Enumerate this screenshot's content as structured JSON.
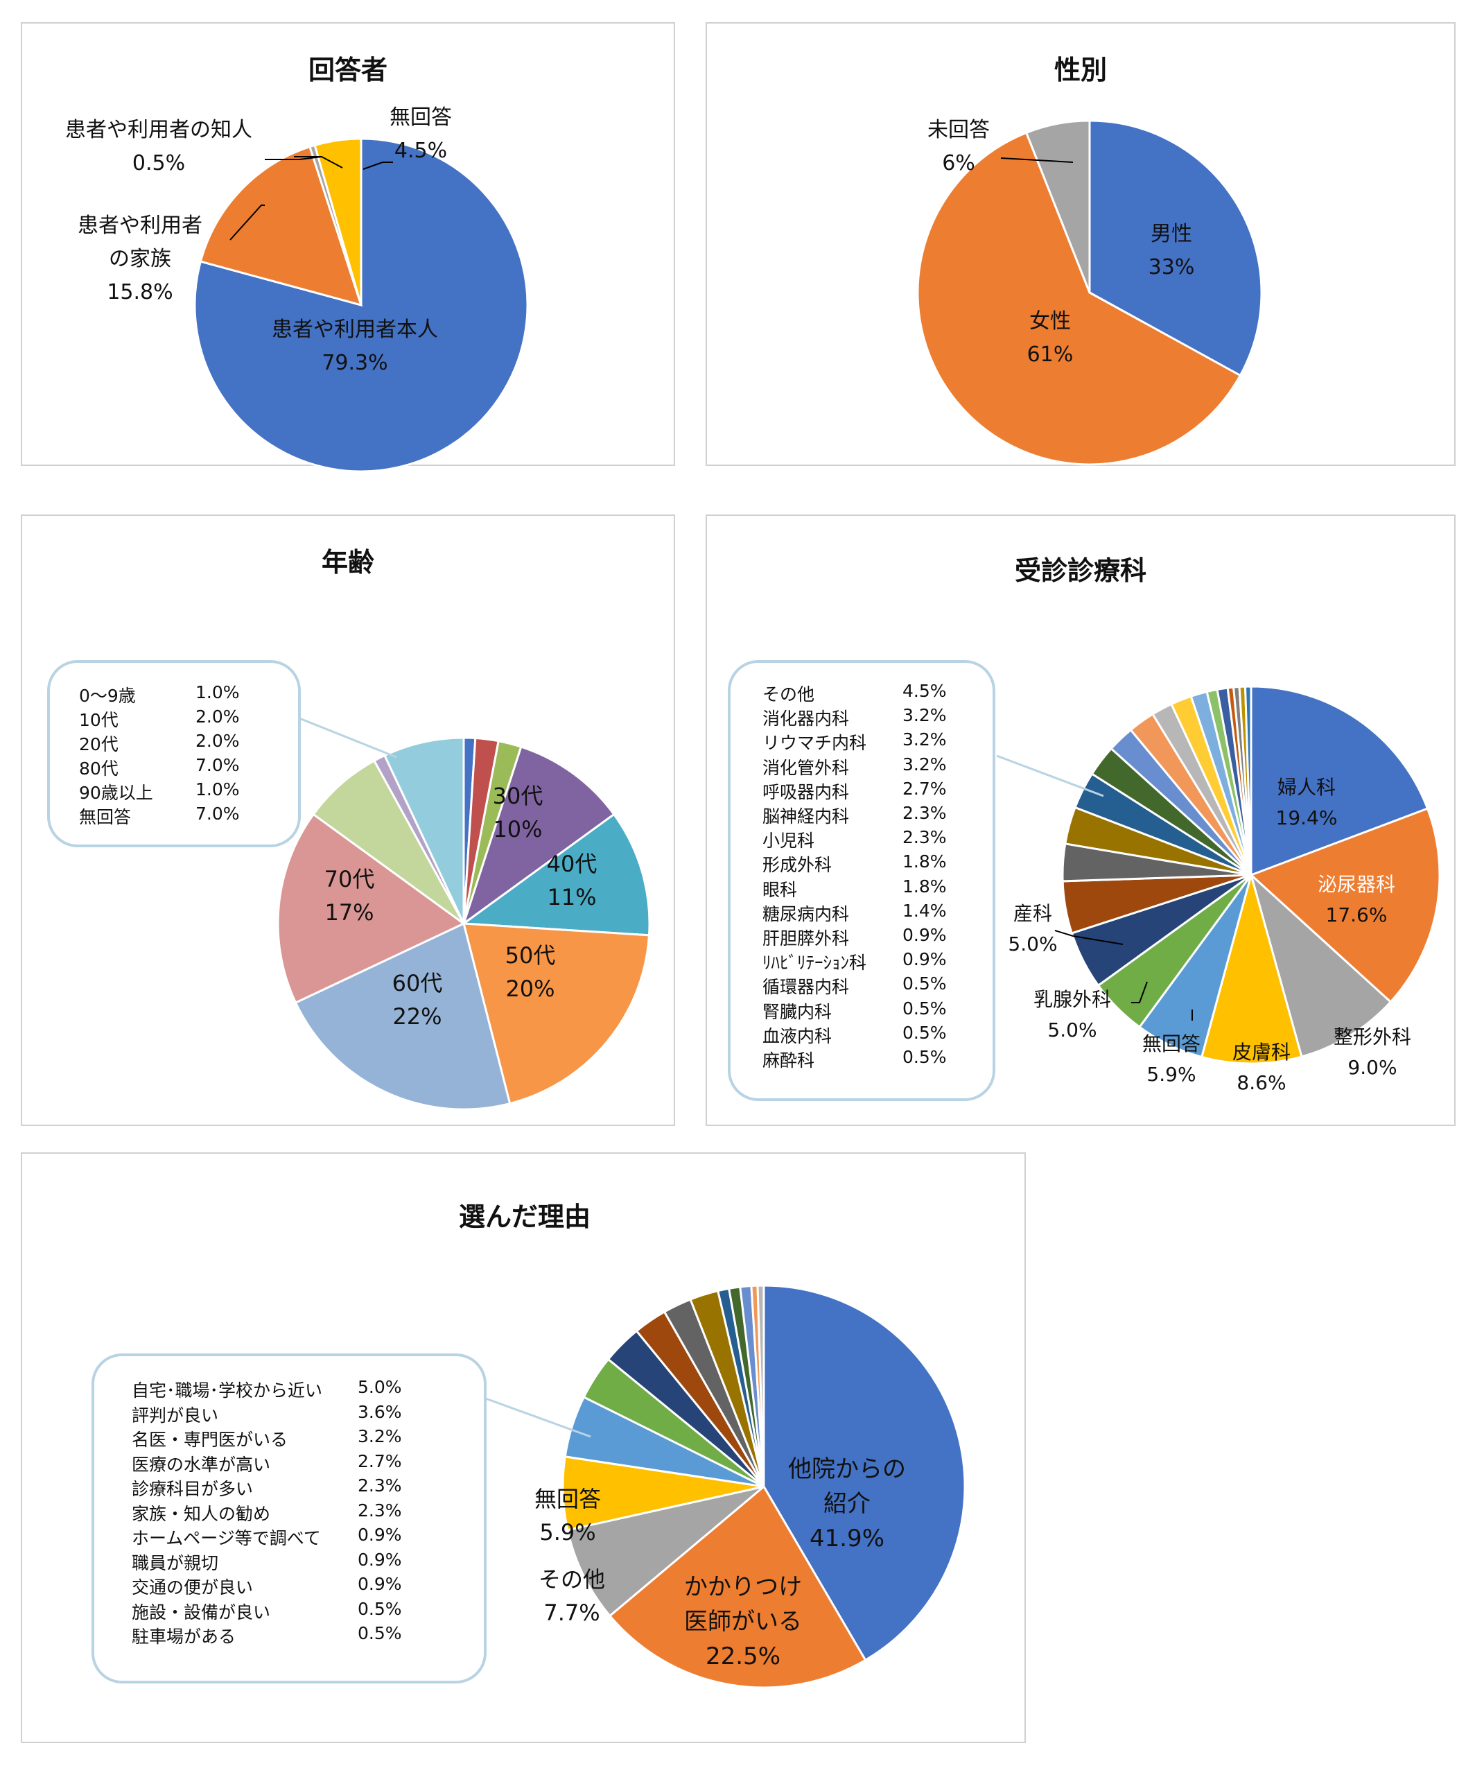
{
  "colors": {
    "blue": "#4472C4",
    "orange": "#ED7D31",
    "gray": "#A5A5A5",
    "gold": "#FFC000",
    "lightblue": "#5B9BD5",
    "green": "#70AD47",
    "navy": "#264478",
    "rust": "#9E480E",
    "darkgray": "#636363",
    "olive": "#997300",
    "steel": "#255E91",
    "forest": "#43682B",
    "periwinkle": "#698ED0",
    "salmon": "#F1975A",
    "silver": "#B7B7B7",
    "yellow": "#FFCD33",
    "sky": "#7CAFDD",
    "lime": "#8CC168"
  },
  "chart_data": [
    {
      "id": "respondent",
      "type": "pie",
      "title": "回答者",
      "slices": [
        {
          "label": "患者や利用者本人",
          "value": 79.3,
          "display": "79.3%",
          "color": "#4472C4"
        },
        {
          "label": "患者や利用者の家族",
          "label_lines": [
            "患者や利用者",
            "の家族"
          ],
          "value": 15.8,
          "display": "15.8%",
          "color": "#ED7D31"
        },
        {
          "label": "患者や利用者の知人",
          "value": 0.5,
          "display": "0.5%",
          "color": "#A5A5A5"
        },
        {
          "label": "無回答",
          "value": 4.5,
          "display": "4.5%",
          "color": "#FFC000"
        }
      ]
    },
    {
      "id": "gender",
      "type": "pie",
      "title": "性別",
      "slices": [
        {
          "label": "男性",
          "value": 33,
          "display": "33%",
          "color": "#4472C4"
        },
        {
          "label": "女性",
          "value": 61,
          "display": "61%",
          "color": "#ED7D31"
        },
        {
          "label": "未回答",
          "value": 6,
          "display": "6%",
          "color": "#A5A5A5"
        }
      ]
    },
    {
      "id": "age",
      "type": "pie",
      "title": "年齢",
      "slices": [
        {
          "label": "0～9歳",
          "value": 1.0,
          "display": "1.0%",
          "color": "#4472C4"
        },
        {
          "label": "10代",
          "value": 2.0,
          "display": "2.0%",
          "color": "#C0504D"
        },
        {
          "label": "20代",
          "value": 2.0,
          "display": "2.0%",
          "color": "#9BBB59"
        },
        {
          "label": "30代",
          "value": 10,
          "display": "10%",
          "color": "#8064A2"
        },
        {
          "label": "40代",
          "value": 11,
          "display": "11%",
          "color": "#4BACC6"
        },
        {
          "label": "50代",
          "value": 20,
          "display": "20%",
          "color": "#F79646"
        },
        {
          "label": "60代",
          "value": 22,
          "display": "22%",
          "color": "#95B3D7"
        },
        {
          "label": "70代",
          "value": 17,
          "display": "17%",
          "color": "#D99694"
        },
        {
          "label": "80代",
          "value": 7.0,
          "display": "7.0%",
          "color": "#C3D69B"
        },
        {
          "label": "90歳以上",
          "value": 1.0,
          "display": "1.0%",
          "color": "#B3A2C7"
        },
        {
          "label": "無回答",
          "value": 7.0,
          "display": "7.0%",
          "color": "#93CDDD"
        }
      ],
      "callout": [
        "0～9歳",
        "10代",
        "20代",
        "80代",
        "90歳以上",
        "無回答"
      ]
    },
    {
      "id": "department",
      "type": "pie",
      "title": "受診診療科",
      "slices": [
        {
          "label": "婦人科",
          "value": 19.4,
          "display": "19.4%",
          "color": "#4472C4"
        },
        {
          "label": "泌尿器科",
          "value": 17.6,
          "display": "17.6%",
          "color": "#ED7D31"
        },
        {
          "label": "整形外科",
          "value": 9.0,
          "display": "9.0%",
          "color": "#A5A5A5"
        },
        {
          "label": "皮膚科",
          "value": 8.6,
          "display": "8.6%",
          "color": "#FFC000"
        },
        {
          "label": "無回答",
          "value": 5.9,
          "display": "5.9%",
          "color": "#5B9BD5"
        },
        {
          "label": "乳腺外科",
          "value": 5.0,
          "display": "5.0%",
          "color": "#70AD47"
        },
        {
          "label": "産科",
          "value": 5.0,
          "display": "5.0%",
          "color": "#264478"
        },
        {
          "label": "その他",
          "value": 4.5,
          "display": "4.5%",
          "color": "#9E480E"
        },
        {
          "label": "消化器内科",
          "value": 3.2,
          "display": "3.2%",
          "color": "#636363"
        },
        {
          "label": "リウマチ内科",
          "value": 3.2,
          "display": "3.2%",
          "color": "#997300"
        },
        {
          "label": "消化管外科",
          "value": 3.2,
          "display": "3.2%",
          "color": "#255E91"
        },
        {
          "label": "呼吸器内科",
          "value": 2.7,
          "display": "2.7%",
          "color": "#43682B"
        },
        {
          "label": "脳神経内科",
          "value": 2.3,
          "display": "2.3%",
          "color": "#698ED0"
        },
        {
          "label": "小児科",
          "value": 2.3,
          "display": "2.3%",
          "color": "#F1975A"
        },
        {
          "label": "形成外科",
          "value": 1.8,
          "display": "1.8%",
          "color": "#B7B7B7"
        },
        {
          "label": "眼科",
          "value": 1.8,
          "display": "1.8%",
          "color": "#FFCD33"
        },
        {
          "label": "糖尿病内科",
          "value": 1.4,
          "display": "1.4%",
          "color": "#7CAFDD"
        },
        {
          "label": "肝胆膵外科",
          "value": 0.9,
          "display": "0.9%",
          "color": "#8CC168"
        },
        {
          "label": "ﾘﾊﾋﾞﾘﾃｰｼｮﾝ科",
          "value": 0.9,
          "display": "0.9%",
          "color": "#3A5FA0"
        },
        {
          "label": "循環器内科",
          "value": 0.5,
          "display": "0.5%",
          "color": "#C55A11"
        },
        {
          "label": "腎臓内科",
          "value": 0.5,
          "display": "0.5%",
          "color": "#7F7F7F"
        },
        {
          "label": "血液内科",
          "value": 0.5,
          "display": "0.5%",
          "color": "#BF9000"
        },
        {
          "label": "麻酔科",
          "value": 0.5,
          "display": "0.5%",
          "color": "#2E75B6"
        }
      ],
      "callout": [
        "その他",
        "消化器内科",
        "リウマチ内科",
        "消化管外科",
        "呼吸器内科",
        "脳神経内科",
        "小児科",
        "形成外科",
        "眼科",
        "糖尿病内科",
        "肝胆膵外科",
        "ﾘﾊﾋﾞﾘﾃｰｼｮﾝ科",
        "循環器内科",
        "腎臓内科",
        "血液内科",
        "麻酔科"
      ]
    },
    {
      "id": "reason",
      "type": "pie",
      "title": "選んだ理由",
      "slices": [
        {
          "label": "他院からの紹介",
          "label_lines": [
            "他院からの",
            "紹介"
          ],
          "value": 41.9,
          "display": "41.9%",
          "color": "#4472C4"
        },
        {
          "label": "かかりつけ医師がいる",
          "label_lines": [
            "かかりつけ",
            "医師がいる"
          ],
          "value": 22.5,
          "display": "22.5%",
          "color": "#ED7D31"
        },
        {
          "label": "その他",
          "value": 7.7,
          "display": "7.7%",
          "color": "#A5A5A5"
        },
        {
          "label": "無回答",
          "value": 5.9,
          "display": "5.9%",
          "color": "#FFC000"
        },
        {
          "label": "自宅･職場･学校から近い",
          "value": 5.0,
          "display": "5.0%",
          "color": "#5B9BD5"
        },
        {
          "label": "評判が良い",
          "value": 3.6,
          "display": "3.6%",
          "color": "#70AD47"
        },
        {
          "label": "名医・専門医がいる",
          "value": 3.2,
          "display": "3.2%",
          "color": "#264478"
        },
        {
          "label": "医療の水準が高い",
          "value": 2.7,
          "display": "2.7%",
          "color": "#9E480E"
        },
        {
          "label": "診療科目が多い",
          "value": 2.3,
          "display": "2.3%",
          "color": "#636363"
        },
        {
          "label": "家族・知人の勧め",
          "value": 2.3,
          "display": "2.3%",
          "color": "#997300"
        },
        {
          "label": "ホームページ等で調べて",
          "value": 0.9,
          "display": "0.9%",
          "color": "#255E91"
        },
        {
          "label": "職員が親切",
          "value": 0.9,
          "display": "0.9%",
          "color": "#43682B"
        },
        {
          "label": "交通の便が良い",
          "value": 0.9,
          "display": "0.9%",
          "color": "#698ED0"
        },
        {
          "label": "施設・設備が良い",
          "value": 0.5,
          "display": "0.5%",
          "color": "#F1975A"
        },
        {
          "label": "駐車場がある",
          "value": 0.5,
          "display": "0.5%",
          "color": "#B7B7B7"
        }
      ],
      "callout": [
        "自宅･職場･学校から近い",
        "評判が良い",
        "名医・専門医がいる",
        "医療の水準が高い",
        "診療科目が多い",
        "家族・知人の勧め",
        "ホームページ等で調べて",
        "職員が親切",
        "交通の便が良い",
        "施設・設備が良い",
        "駐車場がある"
      ]
    }
  ]
}
